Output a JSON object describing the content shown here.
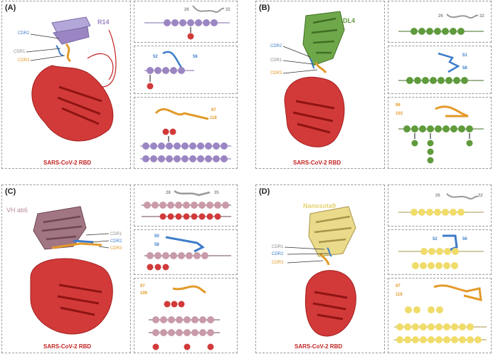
{
  "rbd_label": "SARS-CoV-2 RBD",
  "colors": {
    "rbd": "#c22222",
    "cdr1": "#8c8c8c",
    "cdr2": "#3d7cc9",
    "cdr3": "#e39a2a"
  },
  "cdr_labels": {
    "cdr1": "CDR1",
    "cdr2": "CDR2",
    "cdr3": "CDR3"
  },
  "panels": [
    {
      "id": "A",
      "label": "(A)",
      "nanobody": "R14",
      "nb_color": "#9b86c3",
      "bead_color": "#9b86c3",
      "boxes": [
        {
          "n1": "26",
          "n2": "32"
        },
        {
          "n1": "52",
          "n2": "56"
        },
        {
          "n1": "97",
          "n2": "118"
        }
      ]
    },
    {
      "id": "B",
      "label": "(B)",
      "nanobody": "DL4",
      "nb_color": "#5f9a3c",
      "bead_color": "#5f9a3c",
      "boxes": [
        {
          "n1": "26",
          "n2": "32"
        },
        {
          "n1": "51",
          "n2": "58"
        },
        {
          "n1": "96",
          "n2": "103"
        }
      ]
    },
    {
      "id": "C",
      "label": "(C)",
      "nanobody": "VH ab6",
      "nb_color": "#b78a97",
      "bead_color": "#c99aa8",
      "boxes": [
        {
          "n1": "28",
          "n2": "35"
        },
        {
          "n1": "50",
          "n2": "58"
        },
        {
          "n1": "97",
          "n2": "109"
        }
      ]
    },
    {
      "id": "D",
      "label": "(D)",
      "nanobody": "Nanosota9",
      "nb_color": "#e6d171",
      "bead_color": "#efdc6a",
      "boxes": [
        {
          "n1": "26",
          "n2": "32"
        },
        {
          "n1": "52",
          "n2": "56"
        },
        {
          "n1": "97",
          "n2": "116"
        }
      ]
    }
  ]
}
